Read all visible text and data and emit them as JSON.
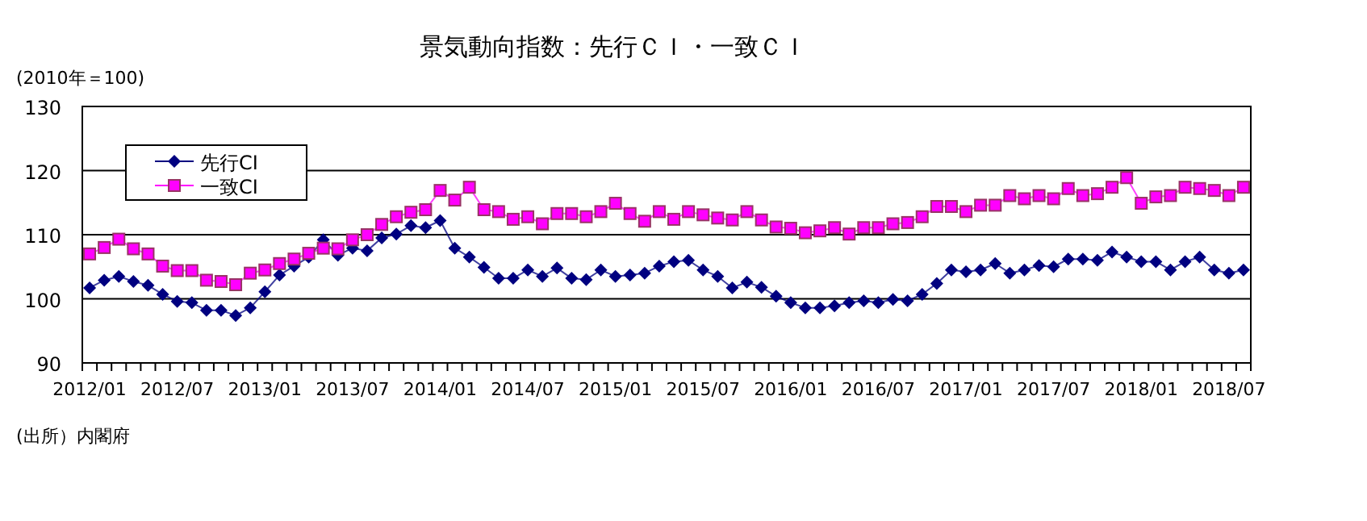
{
  "chart_data": {
    "type": "line",
    "title": "景気動向指数：先行ＣＩ・一致ＣＩ",
    "ylabel": "(2010年＝100)",
    "categories": [
      "2012/01",
      null,
      null,
      null,
      null,
      null,
      "2012/07",
      null,
      null,
      null,
      null,
      null,
      "2013/01",
      null,
      null,
      null,
      null,
      null,
      "2013/07",
      null,
      null,
      null,
      null,
      null,
      "2014/01",
      null,
      null,
      null,
      null,
      null,
      "2014/07",
      null,
      null,
      null,
      null,
      null,
      "2015/01",
      null,
      null,
      null,
      null,
      null,
      "2015/07",
      null,
      null,
      null,
      null,
      null,
      "2016/01",
      null,
      null,
      null,
      null,
      null,
      "2016/07",
      null,
      null,
      null,
      null,
      null,
      "2017/01",
      null,
      null,
      null,
      null,
      null,
      "2017/07",
      null,
      null,
      null,
      null,
      null,
      "2018/01",
      null,
      null,
      null,
      null,
      null,
      "2018/07",
      null
    ],
    "series": [
      {
        "name": "先行CI",
        "color": "#000080",
        "marker": "diamond",
        "values": [
          101.7,
          102.9,
          103.5,
          102.7,
          102.1,
          100.7,
          99.6,
          99.4,
          98.2,
          98.2,
          97.4,
          98.6,
          101.1,
          103.7,
          105.1,
          106.5,
          109.2,
          106.8,
          107.9,
          107.5,
          109.5,
          110.1,
          111.4,
          111.1,
          112.2,
          107.9,
          106.5,
          104.9,
          103.2,
          103.2,
          104.5,
          103.5,
          104.8,
          103.2,
          103.0,
          104.5,
          103.5,
          103.7,
          104.0,
          105.1,
          105.8,
          106.0,
          104.5,
          103.5,
          101.7,
          102.6,
          101.8,
          100.4,
          99.4,
          98.6,
          98.6,
          98.9,
          99.4,
          99.7,
          99.4,
          99.9,
          99.7,
          100.7,
          102.4,
          104.5,
          104.2,
          104.5,
          105.5,
          104.0,
          104.5,
          105.2,
          105.0,
          106.2,
          106.2,
          106.0,
          107.3,
          106.5,
          105.8,
          105.8,
          104.5,
          105.8,
          106.5,
          104.5,
          104.0,
          104.5
        ]
      },
      {
        "name": "一致CI",
        "color": "#ff00ff",
        "marker": "square",
        "values": [
          107.0,
          108.0,
          109.3,
          107.8,
          107.0,
          105.1,
          104.4,
          104.4,
          102.9,
          102.7,
          102.2,
          104.0,
          104.5,
          105.5,
          106.2,
          107.1,
          107.9,
          107.8,
          109.2,
          110.0,
          111.6,
          112.8,
          113.5,
          113.9,
          116.9,
          115.4,
          117.4,
          113.9,
          113.6,
          112.4,
          112.8,
          111.7,
          113.3,
          113.3,
          112.8,
          113.6,
          114.9,
          113.3,
          112.1,
          113.6,
          112.4,
          113.6,
          113.1,
          112.6,
          112.3,
          113.6,
          112.3,
          111.2,
          111.0,
          110.3,
          110.6,
          111.1,
          110.1,
          111.1,
          111.1,
          111.7,
          111.9,
          112.8,
          114.4,
          114.4,
          113.6,
          114.6,
          114.6,
          116.1,
          115.6,
          116.1,
          115.6,
          117.2,
          116.1,
          116.4,
          117.4,
          118.9,
          114.9,
          115.9,
          116.1,
          117.4,
          117.2,
          116.9,
          116.1,
          117.4
        ]
      }
    ],
    "ylim": [
      90,
      130
    ],
    "yticks": [
      90,
      100,
      110,
      120,
      130
    ],
    "grid": "y",
    "legend": "top left",
    "annotations": [
      "(出所）内閣府"
    ]
  }
}
